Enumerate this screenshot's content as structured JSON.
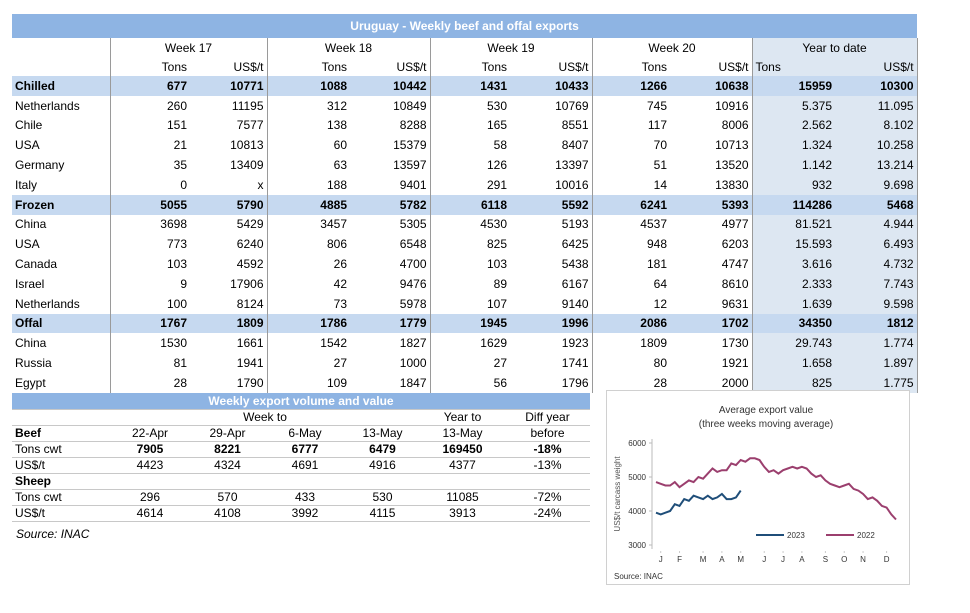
{
  "top_table": {
    "title": "Uruguay - Weekly beef and offal exports",
    "week_headers": [
      "Week 17",
      "Week 18",
      "Week 19",
      "Week 20",
      "Year to date"
    ],
    "unit_headers": [
      "Tons",
      "US$/t",
      "Tons",
      "US$/t",
      "Tons",
      "US$/t",
      "Tons",
      "US$/t",
      "Tons",
      "US$/t"
    ],
    "rows": [
      {
        "label": "Chilled",
        "section": true,
        "cells": [
          "677",
          "10771",
          "1088",
          "10442",
          "1431",
          "10433",
          "1266",
          "10638",
          "15959",
          "10300"
        ]
      },
      {
        "label": "Netherlands",
        "cells": [
          "260",
          "11195",
          "312",
          "10849",
          "530",
          "10769",
          "745",
          "10916",
          "5.375",
          "11.095"
        ]
      },
      {
        "label": "Chile",
        "cells": [
          "151",
          "7577",
          "138",
          "8288",
          "165",
          "8551",
          "117",
          "8006",
          "2.562",
          "8.102"
        ]
      },
      {
        "label": "USA",
        "cells": [
          "21",
          "10813",
          "60",
          "15379",
          "58",
          "8407",
          "70",
          "10713",
          "1.324",
          "10.258"
        ]
      },
      {
        "label": "Germany",
        "cells": [
          "35",
          "13409",
          "63",
          "13597",
          "126",
          "13397",
          "51",
          "13520",
          "1.142",
          "13.214"
        ]
      },
      {
        "label": "Italy",
        "cells": [
          "0",
          "x",
          "188",
          "9401",
          "291",
          "10016",
          "14",
          "13830",
          "932",
          "9.698"
        ]
      },
      {
        "label": "Frozen",
        "section": true,
        "cells": [
          "5055",
          "5790",
          "4885",
          "5782",
          "6118",
          "5592",
          "6241",
          "5393",
          "114286",
          "5468"
        ]
      },
      {
        "label": "China",
        "cells": [
          "3698",
          "5429",
          "3457",
          "5305",
          "4530",
          "5193",
          "4537",
          "4977",
          "81.521",
          "4.944"
        ]
      },
      {
        "label": "USA",
        "cells": [
          "773",
          "6240",
          "806",
          "6548",
          "825",
          "6425",
          "948",
          "6203",
          "15.593",
          "6.493"
        ]
      },
      {
        "label": "Canada",
        "cells": [
          "103",
          "4592",
          "26",
          "4700",
          "103",
          "5438",
          "181",
          "4747",
          "3.616",
          "4.732"
        ]
      },
      {
        "label": "Israel",
        "cells": [
          "9",
          "17906",
          "42",
          "9476",
          "89",
          "6167",
          "64",
          "8610",
          "2.333",
          "7.743"
        ]
      },
      {
        "label": "Netherlands",
        "cells": [
          "100",
          "8124",
          "73",
          "5978",
          "107",
          "9140",
          "12",
          "9631",
          "1.639",
          "9.598"
        ]
      },
      {
        "label": "Offal",
        "section": true,
        "cells": [
          "1767",
          "1809",
          "1786",
          "1779",
          "1945",
          "1996",
          "2086",
          "1702",
          "34350",
          "1812"
        ]
      },
      {
        "label": "China",
        "cells": [
          "1530",
          "1661",
          "1542",
          "1827",
          "1629",
          "1923",
          "1809",
          "1730",
          "29.743",
          "1.774"
        ]
      },
      {
        "label": "Russia",
        "cells": [
          "81",
          "1941",
          "27",
          "1000",
          "27",
          "1741",
          "80",
          "1921",
          "1.658",
          "1.897"
        ]
      },
      {
        "label": "Egypt",
        "cells": [
          "28",
          "1790",
          "109",
          "1847",
          "56",
          "1796",
          "28",
          "2000",
          "825",
          "1.775"
        ]
      }
    ]
  },
  "bottom_table": {
    "title": "Weekly export volume and value",
    "header_row1": [
      "Week to",
      "Year to",
      "Diff year"
    ],
    "header_row2": [
      "Beef",
      "22-Apr",
      "29-Apr",
      "6-May",
      "13-May",
      "13-May",
      "before"
    ],
    "rows": [
      {
        "label": "Tons cwt",
        "bold_values": true,
        "cells": [
          "7905",
          "8221",
          "6777",
          "6479",
          "169450",
          "-18%"
        ]
      },
      {
        "label": "US$/t",
        "cells": [
          "4423",
          "4324",
          "4691",
          "4916",
          "4377",
          "-13%"
        ]
      },
      {
        "label": "Sheep",
        "section": true,
        "cells": []
      },
      {
        "label": "Tons cwt",
        "cells": [
          "296",
          "570",
          "433",
          "530",
          "11085",
          "-72%"
        ]
      },
      {
        "label": "US$/t",
        "cells": [
          "4614",
          "4108",
          "3992",
          "4115",
          "3913",
          "-24%"
        ]
      }
    ],
    "source": "Source: INAC"
  },
  "chart_data": {
    "type": "line",
    "title": "Average export value",
    "subtitle": "(three weeks moving average)",
    "y_label": "US$/t carcass weight",
    "source": "Source: INAC",
    "x": [
      1,
      2,
      3,
      4,
      5,
      6,
      7,
      8,
      9,
      10,
      11,
      12,
      13,
      14,
      15,
      16,
      17,
      18,
      19,
      20,
      21,
      22,
      23,
      24,
      25,
      26,
      27,
      28,
      29,
      30,
      31,
      32,
      33,
      34,
      35,
      36,
      37,
      38,
      39,
      40,
      41,
      42,
      43,
      44,
      45,
      46,
      47,
      48,
      49,
      50,
      51,
      52
    ],
    "xlim": [
      1,
      52
    ],
    "xticks": [
      {
        "value": 2,
        "label": "J"
      },
      {
        "value": 6,
        "label": "F"
      },
      {
        "value": 11,
        "label": "M"
      },
      {
        "value": 15,
        "label": "A"
      },
      {
        "value": 19,
        "label": "M"
      },
      {
        "value": 24,
        "label": "J"
      },
      {
        "value": 28,
        "label": "J"
      },
      {
        "value": 32,
        "label": "A"
      },
      {
        "value": 37,
        "label": "S"
      },
      {
        "value": 41,
        "label": "O"
      },
      {
        "value": 45,
        "label": "N"
      },
      {
        "value": 50,
        "label": "D"
      }
    ],
    "ylim": [
      3000,
      6000
    ],
    "yticks": [
      3000,
      4000,
      5000,
      6000
    ],
    "grid": false,
    "series": [
      {
        "name": "2023",
        "color": "#1f4e79",
        "values": [
          3950,
          3900,
          3950,
          4000,
          4200,
          4150,
          4350,
          4300,
          4450,
          4400,
          4350,
          4450,
          4350,
          4400,
          4500,
          4350,
          4350,
          4400,
          4600,
          null,
          null,
          null,
          null,
          null,
          null,
          null,
          null,
          null,
          null,
          null,
          null,
          null,
          null,
          null,
          null,
          null,
          null,
          null,
          null,
          null,
          null,
          null,
          null,
          null,
          null,
          null,
          null,
          null,
          null,
          null,
          null,
          null
        ]
      },
      {
        "name": "2022",
        "color": "#9b3f6e",
        "values": [
          4850,
          4800,
          4750,
          4750,
          4850,
          4700,
          4800,
          4900,
          4850,
          5000,
          4950,
          5100,
          5250,
          5150,
          5200,
          5200,
          5400,
          5350,
          5500,
          5450,
          5550,
          5550,
          5500,
          5300,
          5150,
          5200,
          5100,
          5200,
          5250,
          5300,
          5250,
          5300,
          5250,
          5100,
          5000,
          5050,
          4900,
          4800,
          4750,
          4700,
          4750,
          4800,
          4650,
          4600,
          4500,
          4350,
          4400,
          4300,
          4150,
          4100,
          3900,
          3750
        ]
      }
    ]
  }
}
